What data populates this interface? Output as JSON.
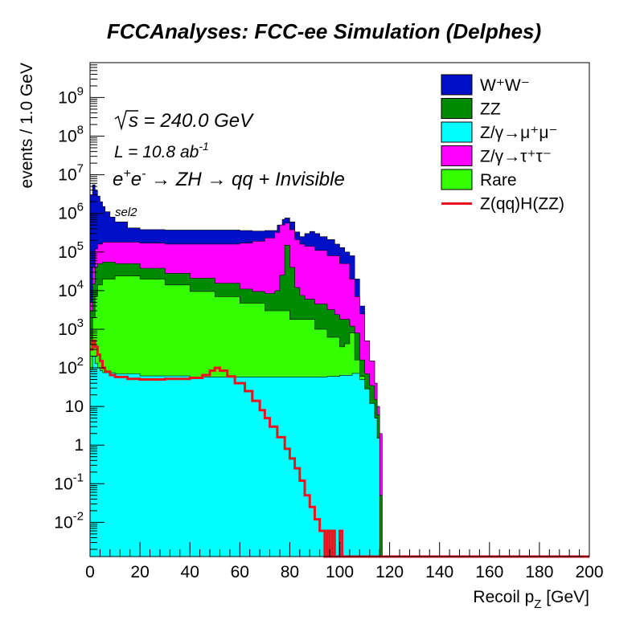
{
  "chart_data": {
    "type": "area",
    "title": "FCCAnalyses: FCC-ee Simulation (Delphes)",
    "xlabel": "Recoil p",
    "xlabel_sub": "Z",
    "xlabel_unit": " [GeV]",
    "ylabel": "events / 1.0 GeV",
    "xlim": [
      0,
      200
    ],
    "ylim": [
      0.0013,
      8000000000
    ],
    "yscale": "log",
    "grid": false,
    "legend_position": "top-right",
    "x_ticks": [
      "0",
      "20",
      "40",
      "60",
      "80",
      "100",
      "120",
      "140",
      "160",
      "180",
      "200"
    ],
    "y_ticks": [
      {
        "base": "10",
        "exp": "-2",
        "v": 0.01
      },
      {
        "base": "10",
        "exp": "-1",
        "v": 0.1
      },
      {
        "base": "1",
        "exp": "",
        "v": 1
      },
      {
        "base": "10",
        "exp": "",
        "v": 10
      },
      {
        "base": "10",
        "exp": "2",
        "v": 100
      },
      {
        "base": "10",
        "exp": "3",
        "v": 1000
      },
      {
        "base": "10",
        "exp": "4",
        "v": 10000
      },
      {
        "base": "10",
        "exp": "5",
        "v": 100000
      },
      {
        "base": "10",
        "exp": "6",
        "v": 1000000
      },
      {
        "base": "10",
        "exp": "7",
        "v": 10000000
      },
      {
        "base": "10",
        "exp": "8",
        "v": 100000000
      },
      {
        "base": "10",
        "exp": "9",
        "v": 1000000000
      }
    ],
    "annotations": {
      "sqrt_s": "s = 240.0 GeV",
      "lumi_pre": "L = 10.8 ab",
      "lumi_exp": "-1",
      "process": "e+e- → ZH → qq + Invisible",
      "selection": "sel2"
    },
    "legend": [
      {
        "id": "ww",
        "label": "W⁺W⁻",
        "color": "#0010c8"
      },
      {
        "id": "zz",
        "label": "ZZ",
        "color": "#008a00"
      },
      {
        "id": "zmm",
        "label": "Z/γ→μ⁺μ⁻",
        "color": "#00ffff"
      },
      {
        "id": "ztt",
        "label": "Z/γ→τ⁺τ⁻",
        "color": "#ff00ff"
      },
      {
        "id": "rare",
        "label": "Rare",
        "color": "#33ff00"
      },
      {
        "id": "signal",
        "label": "Z(qq)H(ZZ)",
        "color": "#e8141e"
      }
    ],
    "series": [
      {
        "id": "zmm",
        "stack_order": 1,
        "type": "stacked-area",
        "color": "#00ffff",
        "x": [
          0,
          1,
          2,
          3,
          4,
          5,
          10,
          20,
          40,
          60,
          80,
          95,
          100,
          105,
          108,
          110,
          112,
          114,
          115,
          116,
          117,
          118
        ],
        "top": [
          90,
          200,
          130,
          100,
          85,
          75,
          70,
          62,
          58,
          58,
          58,
          60,
          64,
          72,
          50,
          28,
          12,
          5,
          1.5,
          0.0013,
          0.0013,
          0.0013
        ]
      },
      {
        "id": "rare",
        "stack_order": 2,
        "type": "stacked-area",
        "color": "#33ff00",
        "x": [
          0,
          1,
          2,
          3,
          5,
          10,
          20,
          30,
          40,
          50,
          60,
          70,
          80,
          90,
          95,
          100,
          102,
          104,
          106,
          108,
          110,
          112,
          114,
          115,
          116,
          117,
          118
        ],
        "top": [
          400,
          2000,
          7000,
          14000,
          20000,
          24000,
          20000,
          14000,
          9500,
          7000,
          4700,
          3000,
          1800,
          1000,
          620,
          350,
          420,
          800,
          160,
          60,
          30,
          12,
          5,
          1.5,
          0.0013,
          0.0013,
          0.0013
        ]
      },
      {
        "id": "zz",
        "stack_order": 3,
        "type": "stacked-area",
        "color": "#008a00",
        "x": [
          0,
          1,
          2,
          3,
          5,
          10,
          20,
          30,
          40,
          50,
          60,
          65,
          70,
          74,
          76,
          78,
          80,
          82,
          84,
          86,
          90,
          95,
          98,
          100,
          104,
          106,
          108,
          110,
          112,
          114,
          115,
          116,
          117,
          118
        ],
        "top": [
          3000,
          15000,
          40000,
          50000,
          55000,
          50000,
          38000,
          28000,
          21000,
          15500,
          11000,
          9500,
          8500,
          10000,
          25000,
          150000,
          40000,
          12000,
          7500,
          6000,
          4500,
          3200,
          2400,
          1800,
          1200,
          800,
          160,
          70,
          35,
          15,
          6,
          0.05,
          0.0013,
          0.0013
        ]
      },
      {
        "id": "ztt",
        "stack_order": 4,
        "type": "stacked-area",
        "color": "#ff00ff",
        "x": [
          0,
          1,
          2,
          3,
          5,
          10,
          20,
          30,
          40,
          50,
          60,
          65,
          70,
          74,
          76,
          78,
          80,
          82,
          84,
          86,
          90,
          95,
          100,
          104,
          106,
          108,
          110,
          112,
          114,
          115,
          116,
          117,
          118
        ],
        "top": [
          5000,
          40000,
          120000,
          160000,
          180000,
          180000,
          170000,
          160000,
          160000,
          160000,
          170000,
          190000,
          230000,
          320000,
          500000,
          560000,
          380000,
          210000,
          160000,
          140000,
          110000,
          80000,
          50000,
          20000,
          7000,
          2500,
          500,
          150,
          40,
          10,
          2,
          0.0013,
          0.0013
        ]
      },
      {
        "id": "ww",
        "stack_order": 5,
        "type": "stacked-area",
        "color": "#0010c8",
        "x": [
          0,
          1,
          2,
          3,
          4,
          5,
          6,
          8,
          10,
          15,
          20,
          30,
          40,
          50,
          60,
          65,
          70,
          75,
          77,
          78,
          80,
          82,
          84,
          86,
          88,
          90,
          92,
          95,
          98,
          100,
          102,
          104,
          106,
          108,
          110,
          112,
          114,
          115,
          116,
          117,
          118
        ],
        "top": [
          3000000,
          5500000,
          4000000,
          2800000,
          2000000,
          1500000,
          1100000,
          800000,
          600000,
          420000,
          380000,
          370000,
          370000,
          370000,
          360000,
          350000,
          360000,
          500000,
          700000,
          760000,
          600000,
          330000,
          250000,
          300000,
          340000,
          300000,
          250000,
          210000,
          160000,
          130000,
          100000,
          80000,
          20000,
          4000,
          500,
          150,
          40,
          10,
          2,
          0.0013,
          0.0013
        ]
      },
      {
        "id": "signal",
        "type": "step-line",
        "color": "#e8141e",
        "x": [
          0,
          1,
          2,
          3,
          4,
          5,
          6,
          8,
          10,
          15,
          20,
          30,
          40,
          45,
          48,
          50,
          52,
          55,
          58,
          62,
          65,
          68,
          70,
          72,
          75,
          78,
          80,
          82,
          84,
          86,
          88,
          90,
          92,
          93,
          94,
          95,
          96,
          97,
          98,
          99,
          100,
          101,
          102,
          103,
          200
        ],
        "values": [
          300,
          500,
          350,
          220,
          150,
          100,
          80,
          65,
          58,
          52,
          50,
          52,
          55,
          65,
          85,
          100,
          85,
          60,
          40,
          25,
          14,
          8,
          5,
          3,
          1.6,
          0.8,
          0.45,
          0.25,
          0.12,
          0.05,
          0.025,
          0.012,
          0.006,
          0.006,
          0.0013,
          0.006,
          0.0013,
          0.006,
          0.0013,
          0.0013,
          0.006,
          0.0013,
          0.0013,
          0.0013,
          0.0013
        ]
      }
    ]
  }
}
